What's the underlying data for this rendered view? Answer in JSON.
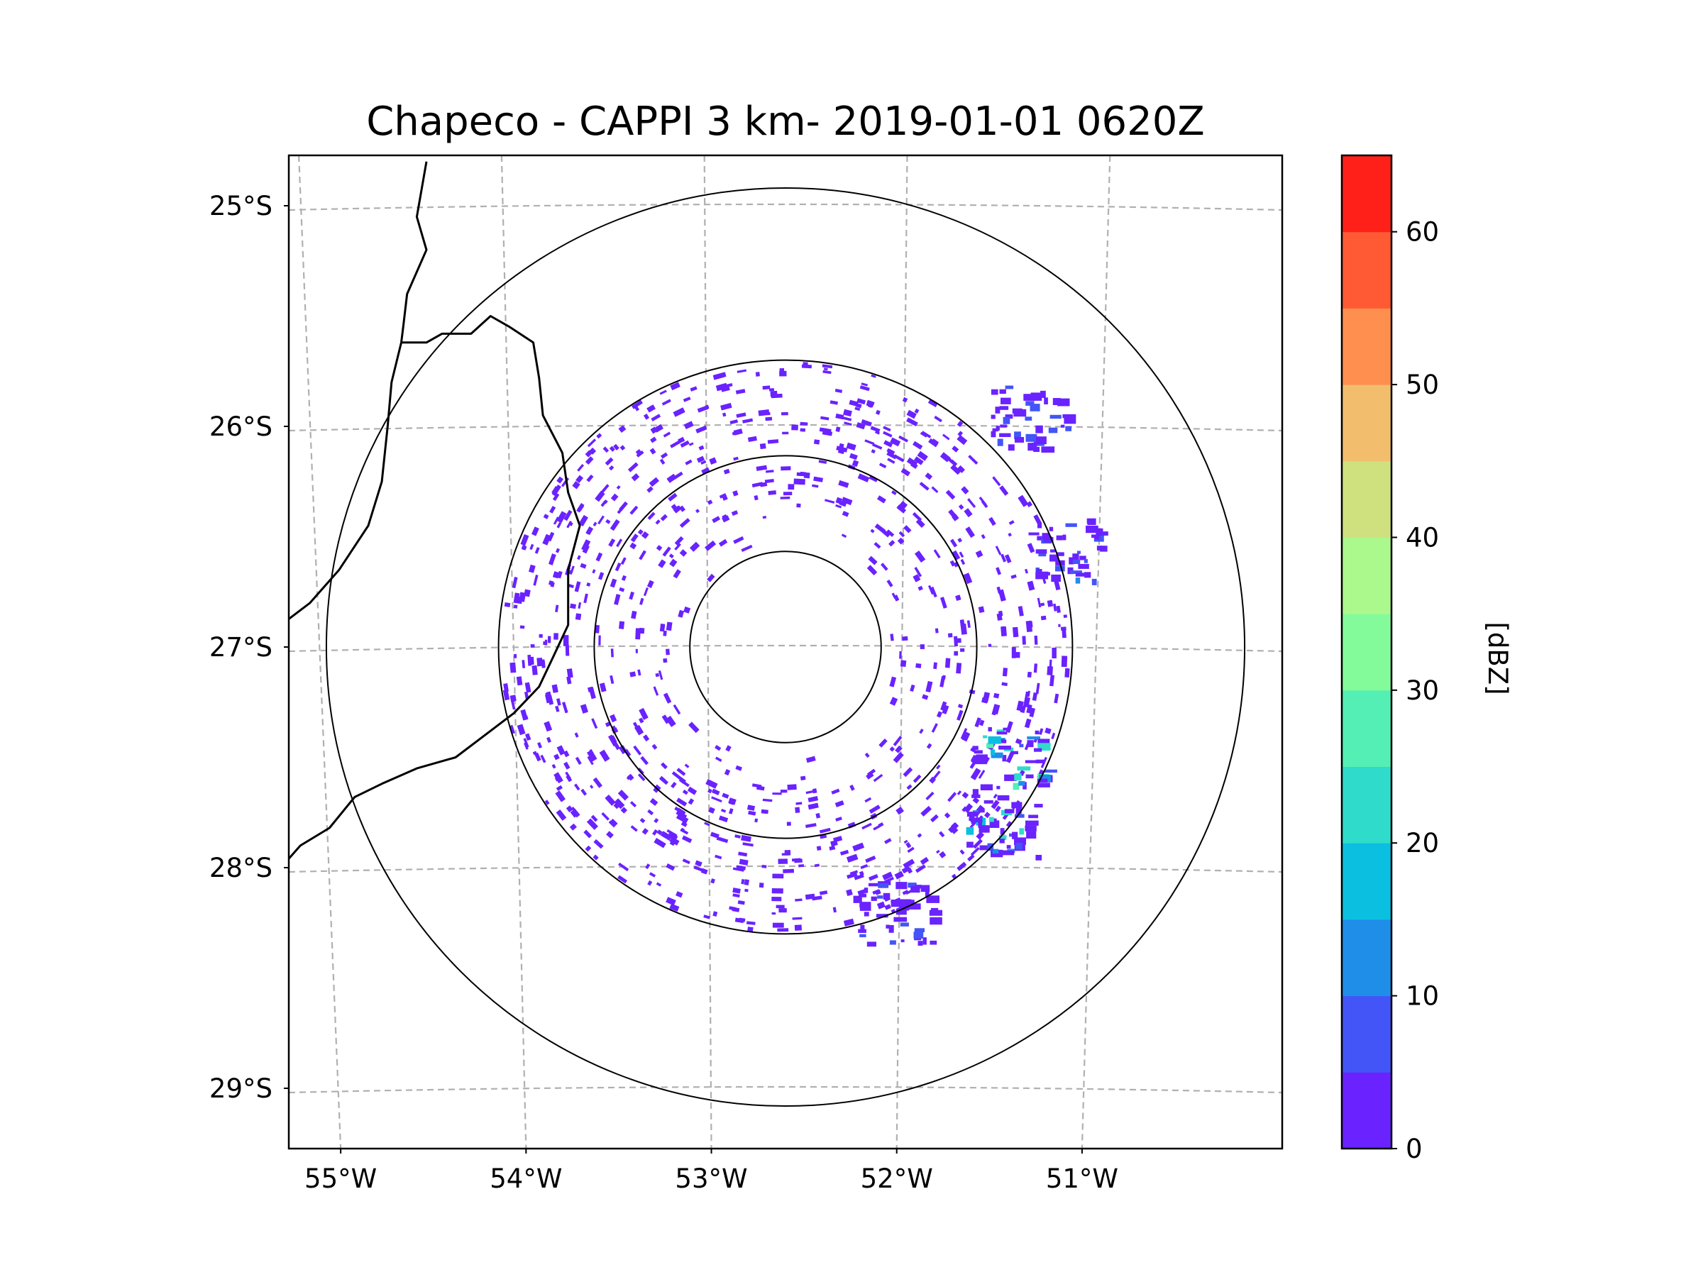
{
  "chart_data": {
    "type": "heatmap",
    "title": "Chapeco - CAPPI 3 km- 2019-01-01 0620Z",
    "radar_site": "Chapeco",
    "product": "CAPPI 3 km",
    "timestamp": "2019-01-01 0620Z",
    "center": {
      "lon": -52.6,
      "lat": -27.0
    },
    "range_rings_km": [
      50,
      100,
      150,
      240
    ],
    "lat_ticks": [
      {
        "value": -25,
        "label": "25°S"
      },
      {
        "value": -26,
        "label": "26°S"
      },
      {
        "value": -27,
        "label": "27°S"
      },
      {
        "value": -28,
        "label": "28°S"
      },
      {
        "value": -29,
        "label": "29°S"
      }
    ],
    "lon_ticks": [
      {
        "value": -55,
        "label": "55°W"
      },
      {
        "value": -54,
        "label": "54°W"
      },
      {
        "value": -53,
        "label": "53°W"
      },
      {
        "value": -52,
        "label": "52°W"
      },
      {
        "value": -51,
        "label": "51°W"
      }
    ],
    "lon_range": [
      -55.15,
      -50.05
    ],
    "lat_range": [
      -29.3,
      -24.8
    ],
    "gridlines": true,
    "colorbar": {
      "label": "[dBZ]",
      "range": [
        0,
        65
      ],
      "step": 5,
      "tick_values": [
        0,
        10,
        20,
        30,
        40,
        50,
        60
      ],
      "tick_labels": [
        "0",
        "10",
        "20",
        "30",
        "40",
        "50",
        "60"
      ],
      "colors": [
        "#6a22ff",
        "#4355f6",
        "#1f8ee9",
        "#0bbfe0",
        "#2fdccc",
        "#54efb4",
        "#83fb9b",
        "#abf88c",
        "#cfe07f",
        "#f2be6e",
        "#ff8f4f",
        "#ff5a34",
        "#ff2019"
      ]
    },
    "echo_clusters": [
      {
        "lon": -51.15,
        "lat": -26.55,
        "dbz": 8,
        "note": "band northeast"
      },
      {
        "lon": -51.35,
        "lat": -25.95,
        "dbz": 6,
        "note": "north-east edge"
      },
      {
        "lon": -51.45,
        "lat": -27.5,
        "dbz": 25,
        "note": "east"
      },
      {
        "lon": -51.5,
        "lat": -27.8,
        "dbz": 22,
        "note": "southeast"
      },
      {
        "lon": -52.05,
        "lat": -28.2,
        "dbz": 5,
        "note": "south"
      }
    ]
  }
}
